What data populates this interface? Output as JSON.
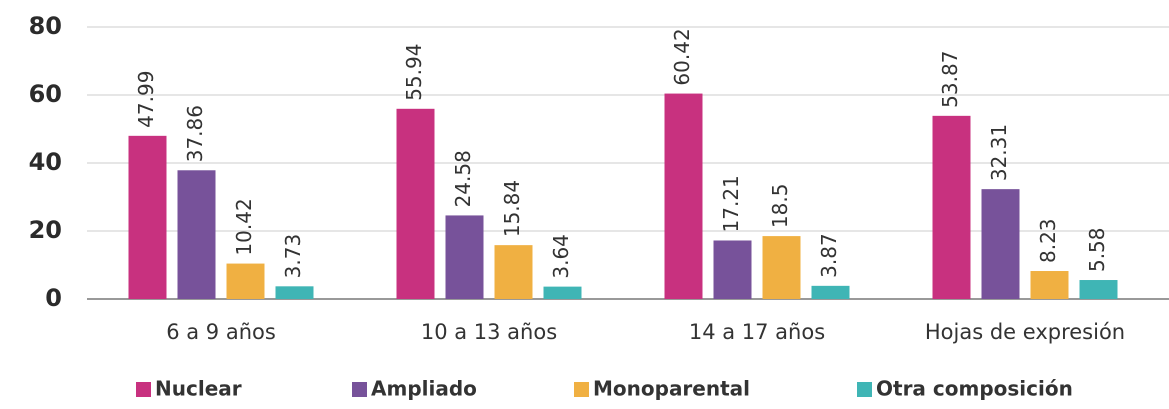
{
  "chart_data": {
    "type": "bar",
    "categories": [
      "6 a 9 años",
      "10 a 13 años",
      "14 a 17 años",
      "Hojas de expresión"
    ],
    "series": [
      {
        "name": "Nuclear",
        "color": "#c8317f",
        "values": [
          47.99,
          55.94,
          60.42,
          53.87
        ]
      },
      {
        "name": "Ampliado",
        "color": "#77529a",
        "values": [
          37.86,
          24.58,
          17.21,
          32.31
        ]
      },
      {
        "name": "Monoparental",
        "color": "#f0b042",
        "values": [
          10.42,
          15.84,
          18.5,
          8.23
        ]
      },
      {
        "name": "Otra composición",
        "color": "#3fb5b5",
        "values": [
          3.73,
          3.64,
          3.87,
          5.58
        ]
      }
    ],
    "ylim": [
      0,
      80
    ],
    "yticks": [
      0,
      20,
      40,
      60,
      80
    ],
    "grid": true,
    "legend": "bottom"
  }
}
